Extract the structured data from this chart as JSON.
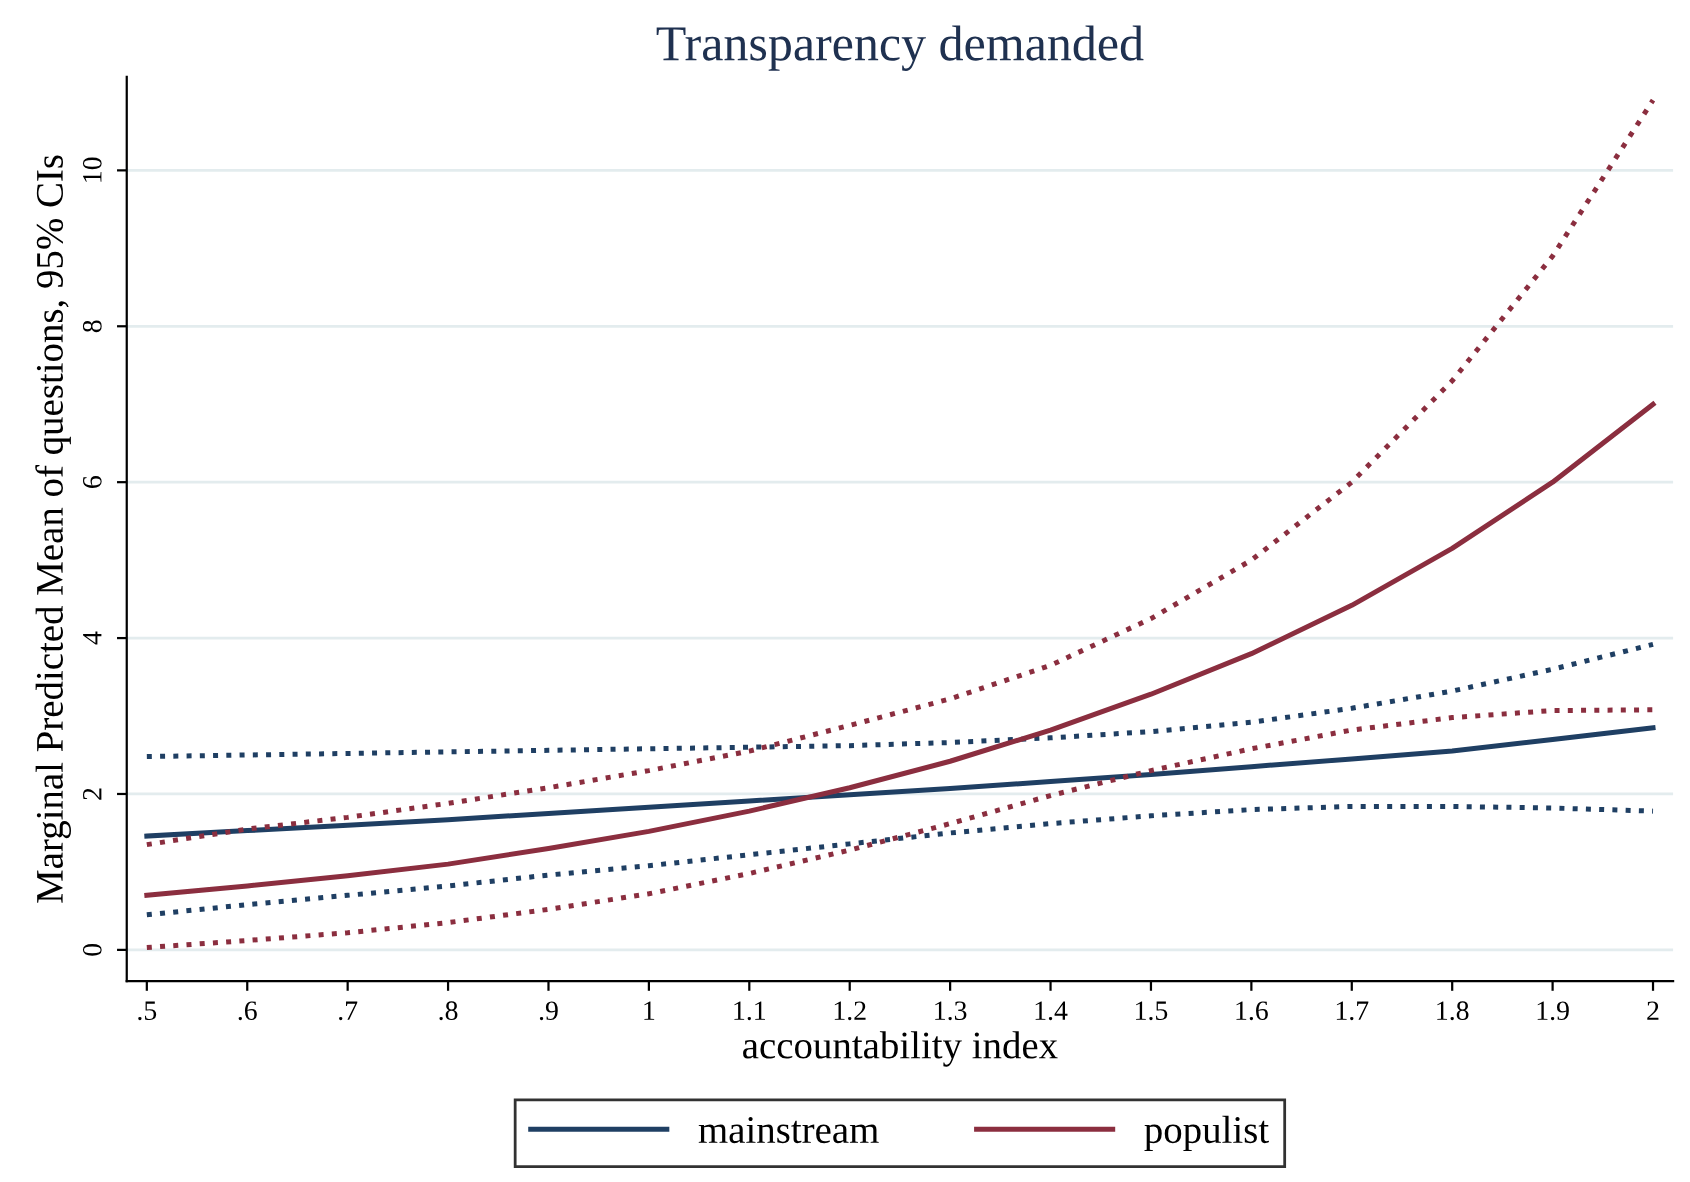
{
  "chart_data": {
    "type": "line",
    "title": "Transparency demanded",
    "xlabel": "accountability index",
    "ylabel": "Marginal Predicted Mean of questions, 95% CIs",
    "x": [
      0.5,
      0.6,
      0.7,
      0.8,
      0.9,
      1,
      1.1,
      1.2,
      1.3,
      1.4,
      1.5,
      1.6,
      1.7,
      1.8,
      1.9,
      2
    ],
    "series": [
      {
        "name": "mainstream",
        "color": "#1f3f63",
        "line_style": "solid",
        "values": [
          1.46,
          1.53,
          1.6,
          1.67,
          1.75,
          1.83,
          1.91,
          1.99,
          2.07,
          2.16,
          2.25,
          2.35,
          2.45,
          2.55,
          2.7,
          2.85
        ]
      },
      {
        "color": "#1f3f63",
        "line_style": "dotted",
        "values": [
          2.48,
          2.5,
          2.52,
          2.54,
          2.56,
          2.58,
          2.6,
          2.62,
          2.66,
          2.72,
          2.8,
          2.92,
          3.1,
          3.32,
          3.6,
          3.92
        ]
      },
      {
        "color": "#1f3f63",
        "line_style": "dotted",
        "values": [
          0.45,
          0.58,
          0.7,
          0.82,
          0.96,
          1.08,
          1.22,
          1.36,
          1.5,
          1.62,
          1.72,
          1.8,
          1.84,
          1.84,
          1.82,
          1.78
        ]
      },
      {
        "name": "populist",
        "color": "#8b2e3f",
        "line_style": "solid",
        "values": [
          0.7,
          0.82,
          0.95,
          1.1,
          1.3,
          1.52,
          1.78,
          2.08,
          2.42,
          2.82,
          3.28,
          3.8,
          4.42,
          5.15,
          6.0,
          7.0
        ]
      },
      {
        "color": "#8b2e3f",
        "line_style": "dotted",
        "values": [
          1.35,
          1.55,
          1.7,
          1.88,
          2.08,
          2.3,
          2.55,
          2.88,
          3.22,
          3.65,
          4.25,
          5.0,
          6.0,
          7.3,
          8.9,
          10.9
        ]
      },
      {
        "color": "#8b2e3f",
        "line_style": "dotted",
        "values": [
          0.03,
          0.12,
          0.22,
          0.35,
          0.52,
          0.72,
          0.98,
          1.28,
          1.62,
          1.98,
          2.3,
          2.58,
          2.82,
          2.98,
          3.07,
          3.08
        ]
      }
    ],
    "xlim": [
      0.48,
      2.02
    ],
    "ylim": [
      -0.4,
      11.2
    ],
    "xticks": [
      {
        "value": 0.5,
        "label": ".5"
      },
      {
        "value": 0.6,
        "label": ".6"
      },
      {
        "value": 0.7,
        "label": ".7"
      },
      {
        "value": 0.8,
        "label": ".8"
      },
      {
        "value": 0.9,
        "label": ".9"
      },
      1,
      1.1,
      1.2,
      1.3,
      1.4,
      1.5,
      1.6,
      1.7,
      1.8,
      1.9,
      2
    ],
    "yticks": [
      0,
      2,
      4,
      6,
      8,
      10
    ],
    "grid": "y",
    "legend": "bottom",
    "marker": "none"
  }
}
